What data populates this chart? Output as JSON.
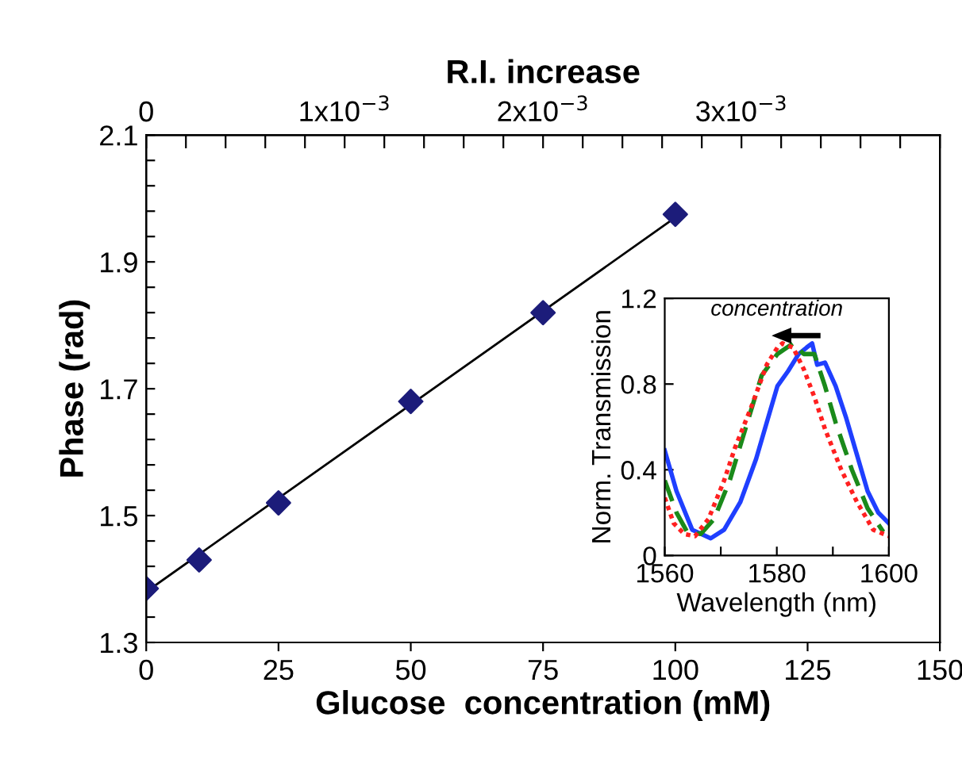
{
  "chart_data": [
    {
      "type": "scatter",
      "xlabel": "Glucose  concentration (mM)",
      "ylabel": "Phase (rad)",
      "x2label": "R.I. increase",
      "marker": "diamond",
      "grid": false,
      "legend": false,
      "x": [
        0,
        10,
        25,
        50,
        75,
        100
      ],
      "series": [
        {
          "color": "#1c1c7a",
          "values": [
            1.385,
            1.43,
            1.52,
            1.68,
            1.82,
            1.975
          ]
        },
        {
          "type": "line",
          "color": "#000000",
          "x": [
            0,
            100
          ],
          "values": [
            1.38,
            1.97
          ],
          "marker": "none",
          "line_style": "solid"
        }
      ],
      "xlim": [
        0,
        150
      ],
      "xticks": [
        0,
        25,
        50,
        75,
        100,
        125,
        150
      ],
      "ylim": [
        1.3,
        2.1
      ],
      "yticks": [
        1.3,
        {
          "value": 1.34,
          "label": null
        },
        {
          "value": 1.38,
          "label": null
        },
        {
          "value": 1.42,
          "label": null
        },
        {
          "value": 1.46,
          "label": null
        },
        1.5,
        {
          "value": 1.54,
          "label": null
        },
        {
          "value": 1.58,
          "label": null
        },
        {
          "value": 1.62,
          "label": null
        },
        {
          "value": 1.66,
          "label": null
        },
        1.7,
        {
          "value": 1.74,
          "label": null
        },
        {
          "value": 1.78,
          "label": null
        },
        {
          "value": 1.82,
          "label": null
        },
        {
          "value": 1.86,
          "label": null
        },
        1.9,
        {
          "value": 1.94,
          "label": null
        },
        {
          "value": 1.98,
          "label": null
        },
        {
          "value": 2.02,
          "label": null
        },
        {
          "value": 2.06,
          "label": null
        },
        2.1
      ],
      "x2lim": [
        0,
        0.004
      ],
      "x2ticks": [
        0,
        {
          "value": 0.0002,
          "label": null
        },
        {
          "value": 0.0004,
          "label": null
        },
        {
          "value": 0.0006,
          "label": null
        },
        {
          "value": 0.0008,
          "label": null
        },
        {
          "value": 0.001,
          "label": "1x10$^{−3}$"
        },
        {
          "value": 0.0012,
          "label": null
        },
        {
          "value": 0.0014,
          "label": null
        },
        {
          "value": 0.0016,
          "label": null
        },
        {
          "value": 0.0018,
          "label": null
        },
        {
          "value": 0.002,
          "label": "2x10$^{−3}$"
        },
        {
          "value": 0.0022,
          "label": null
        },
        {
          "value": 0.0024,
          "label": null
        },
        {
          "value": 0.0026,
          "label": null
        },
        {
          "value": 0.0028,
          "label": null
        },
        {
          "value": 0.003,
          "label": "3x10$^{−3}$"
        },
        {
          "value": 0.0032,
          "label": null
        },
        {
          "value": 0.0034,
          "label": null
        },
        {
          "value": 0.0036,
          "label": null
        },
        {
          "value": 0.0038,
          "label": null
        },
        {
          "value": 0.004,
          "label": null
        }
      ]
    },
    {
      "type": "line",
      "xlabel": "Wavelength (nm)",
      "ylabel": "Norm. Transmission",
      "annotations": [
        "concentration"
      ],
      "grid": false,
      "legend": false,
      "marker": "none",
      "series": [
        {
          "color": "#1f3fff",
          "line_style": "solid",
          "x": [
            1560,
            1562.1,
            1564.9,
            1568.2,
            1570.6,
            1573.5,
            1576.3,
            1578.2,
            1580.1,
            1582,
            1583.9,
            1585.3,
            1586.3,
            1587.2,
            1588.6,
            1590.5,
            1592.4,
            1594.3,
            1596.2,
            1598.1,
            1600
          ],
          "values": [
            0.49,
            0.3,
            0.12,
            0.08,
            0.12,
            0.25,
            0.45,
            0.62,
            0.79,
            0.86,
            0.94,
            0.97,
            0.99,
            0.89,
            0.9,
            0.79,
            0.64,
            0.47,
            0.3,
            0.2,
            0.15
          ]
        },
        {
          "color": "#1a8a1a",
          "line_style": "dashed",
          "x": [
            1560,
            1562.1,
            1564,
            1566.4,
            1568.8,
            1571.6,
            1574.5,
            1577.3,
            1580.1,
            1582.9,
            1584.8,
            1586.7,
            1588.6,
            1590.5,
            1593.4,
            1596.2,
            1599
          ],
          "values": [
            0.35,
            0.2,
            0.11,
            0.1,
            0.17,
            0.35,
            0.6,
            0.84,
            0.94,
            0.99,
            0.94,
            0.94,
            0.79,
            0.62,
            0.4,
            0.22,
            0.11
          ]
        },
        {
          "color": "#ff2020",
          "line_style": "dotted",
          "x": [
            1560,
            1561.6,
            1563.5,
            1565.4,
            1567.8,
            1570.6,
            1572.5,
            1575.4,
            1578.2,
            1580.1,
            1581,
            1582.9,
            1584.8,
            1586.7,
            1588.6,
            1591.5,
            1594.3,
            1597.2,
            1600
          ],
          "values": [
            0.27,
            0.15,
            0.1,
            0.09,
            0.17,
            0.35,
            0.5,
            0.69,
            0.89,
            0.97,
            0.99,
            0.97,
            0.87,
            0.74,
            0.59,
            0.4,
            0.25,
            0.12,
            0.09
          ]
        }
      ],
      "xlim": [
        1560,
        1600
      ],
      "xticks": [
        1560,
        {
          "value": 1570,
          "label": null
        },
        1580,
        {
          "value": 1590,
          "label": null
        },
        1600
      ],
      "ylim": [
        0,
        1.2
      ],
      "yticks": [
        0,
        0.4,
        0.8,
        1.2
      ]
    }
  ]
}
